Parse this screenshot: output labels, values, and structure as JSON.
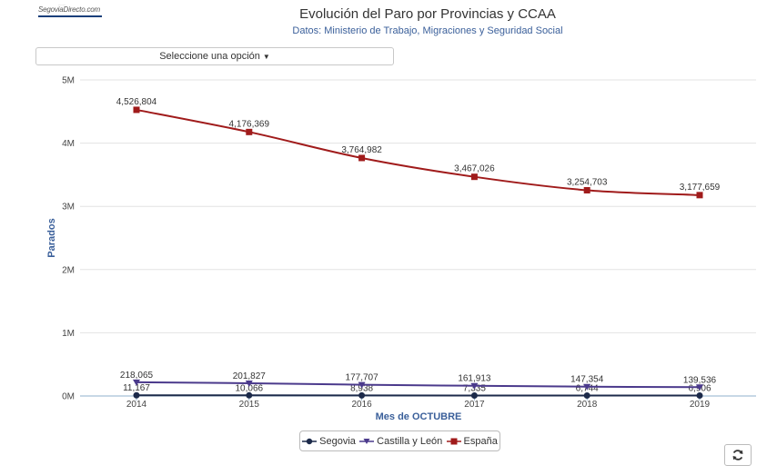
{
  "header": {
    "logo_text": "SegoviaDirecto.com",
    "title": "Evolución del Paro por Provincias y CCAA",
    "subtitle": "Datos: Ministerio de Trabajo, Migraciones y Seguridad Social"
  },
  "selector": {
    "label": "Seleccione una opción"
  },
  "chart_data": {
    "type": "line",
    "title": "Evolución del Paro por Provincias y CCAA",
    "subtitle": "Datos: Ministerio de Trabajo, Migraciones y Seguridad Social",
    "xlabel": "Mes de OCTUBRE",
    "ylabel": "Parados",
    "categories": [
      "2014",
      "2015",
      "2016",
      "2017",
      "2018",
      "2019"
    ],
    "ylim": [
      0,
      5000000
    ],
    "yticks": [
      {
        "value": 0,
        "label": "0M"
      },
      {
        "value": 1000000,
        "label": "1M"
      },
      {
        "value": 2000000,
        "label": "2M"
      },
      {
        "value": 3000000,
        "label": "3M"
      },
      {
        "value": 4000000,
        "label": "4M"
      },
      {
        "value": 5000000,
        "label": "5M"
      }
    ],
    "grid": true,
    "legend_position": "bottom-center",
    "series": [
      {
        "name": "Segovia",
        "color": "#1c2a4a",
        "marker": "circle",
        "values": [
          11167,
          10066,
          8938,
          7335,
          6744,
          6906
        ],
        "labels": [
          "11,167",
          "10,066",
          "8,938",
          "7,335",
          "6,744",
          "6,906"
        ]
      },
      {
        "name": "Castilla y León",
        "color": "#4b3a8c",
        "marker": "triangle-down",
        "values": [
          218065,
          201827,
          177707,
          161913,
          147354,
          139536
        ],
        "labels": [
          "218,065",
          "201,827",
          "177,707",
          "161,913",
          "147,354",
          "139,536"
        ]
      },
      {
        "name": "España",
        "color": "#a01b1b",
        "marker": "square",
        "values": [
          4526804,
          4176369,
          3764982,
          3467026,
          3254703,
          3177659
        ],
        "labels": [
          "4,526,804",
          "4,176,369",
          "3,764,982",
          "3,467,026",
          "3,254,703",
          "3,177,659"
        ]
      }
    ]
  },
  "controls": {
    "refresh_icon": "refresh-icon"
  }
}
